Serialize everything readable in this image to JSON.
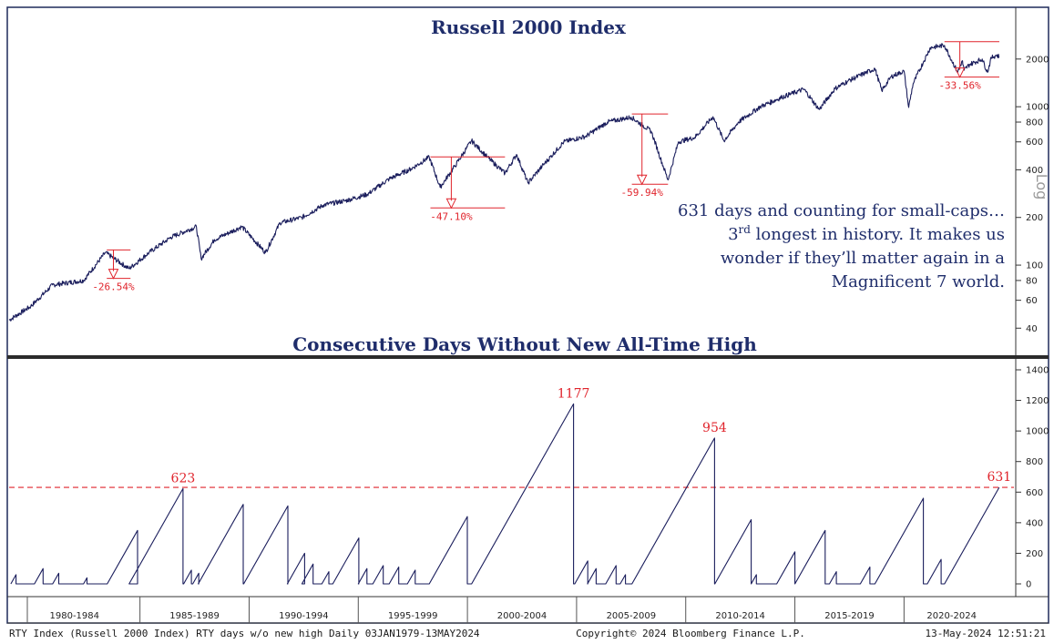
{
  "chart_data": [
    {
      "type": "line",
      "title": "Russell 2000 Index",
      "yscale": "log",
      "ylabel": "Log",
      "yticks": [
        40,
        60,
        80,
        100,
        200,
        400,
        600,
        800,
        1000,
        2000
      ],
      "ylim": [
        30,
        2600
      ],
      "xlim": [
        "1979-01-03",
        "2024-05-13"
      ],
      "series": [
        {
          "x": [
            "1979-01-03",
            "1980-01-01",
            "1981-01-01",
            "1982-06-01",
            "1983-06-01",
            "1984-07-01",
            "1985-06-01",
            "1986-06-01",
            "1987-08-01",
            "1987-10-20",
            "1988-06-01",
            "1989-09-01",
            "1990-10-01",
            "1991-06-01",
            "1992-06-01",
            "1993-06-01",
            "1994-06-01",
            "1995-06-01",
            "1996-06-01",
            "1997-06-01",
            "1998-04-01",
            "1998-10-01",
            "1999-06-01",
            "2000-03-09",
            "2000-12-01",
            "2001-09-20",
            "2002-04-01",
            "2002-10-09",
            "2003-06-01",
            "2004-06-01",
            "2005-06-01",
            "2006-06-01",
            "2007-07-01",
            "2008-06-01",
            "2009-03-09",
            "2009-09-01",
            "2010-06-01",
            "2011-04-01",
            "2011-10-01",
            "2012-06-01",
            "2013-06-01",
            "2014-06-01",
            "2015-06-01",
            "2016-02-11",
            "2016-11-01",
            "2017-06-01",
            "2018-08-31",
            "2018-12-24",
            "2019-06-01",
            "2020-01-01",
            "2020-03-18",
            "2020-06-01",
            "2020-12-01",
            "2021-03-15",
            "2021-11-08",
            "2022-06-16",
            "2022-09-01",
            "2022-10-01",
            "2023-01-01",
            "2023-07-31",
            "2023-10-27",
            "2023-12-31",
            "2024-03-31",
            "2024-05-13"
          ],
          "values": [
            45,
            55,
            75,
            80,
            120,
            95,
            120,
            150,
            175,
            110,
            145,
            175,
            120,
            185,
            200,
            240,
            255,
            280,
            350,
            405,
            480,
            310,
            420,
            610,
            480,
            380,
            500,
            330,
            420,
            600,
            650,
            800,
            860,
            700,
            345,
            600,
            640,
            865,
            610,
            800,
            1000,
            1150,
            1290,
            960,
            1300,
            1450,
            1740,
            1265,
            1550,
            1680,
            990,
            1400,
            1950,
            2360,
            2440,
            1650,
            1950,
            1700,
            1850,
            2000,
            1650,
            2040,
            2120,
            2060
          ]
        }
      ],
      "drawdowns": [
        {
          "label": "-26.54%",
          "pct": -26.54,
          "start": "1983-06-24",
          "end": "1984-07-25"
        },
        {
          "label": "-47.10%",
          "pct": -47.1,
          "start": "1998-04-21",
          "end": "2001-09-21"
        },
        {
          "label": "-59.94%",
          "pct": -59.94,
          "start": "2007-07-13",
          "end": "2009-03-09"
        },
        {
          "label": "-33.56%",
          "pct": -33.56,
          "start": "2021-11-08",
          "end": "2024-05-13"
        }
      ]
    },
    {
      "type": "line",
      "title": "Consecutive Days Without New All-Time High",
      "yticks": [
        0,
        200,
        400,
        600,
        800,
        1000,
        1200,
        1400
      ],
      "ylim": [
        -60,
        1400
      ],
      "xlim": [
        "1979-01-03",
        "2024-05-13"
      ],
      "reference_line": 631,
      "episodes": [
        {
          "start": "1979-02-01",
          "peak": 60
        },
        {
          "start": "1980-03-01",
          "peak": 100
        },
        {
          "start": "1981-01-01",
          "peak": 70
        },
        {
          "start": "1982-06-01",
          "peak": 40
        },
        {
          "start": "1983-07-01",
          "peak": 350
        },
        {
          "start": "1984-07-01",
          "peak": 623,
          "label": "623"
        },
        {
          "start": "1987-01-01",
          "peak": 90
        },
        {
          "start": "1987-06-01",
          "peak": 70
        },
        {
          "start": "1987-09-01",
          "peak": 520
        },
        {
          "start": "1989-10-01",
          "peak": 510
        },
        {
          "start": "1991-10-01",
          "peak": 200
        },
        {
          "start": "1992-06-01",
          "peak": 130
        },
        {
          "start": "1993-05-01",
          "peak": 80
        },
        {
          "start": "1993-11-01",
          "peak": 300
        },
        {
          "start": "1995-01-01",
          "peak": 100
        },
        {
          "start": "1995-09-01",
          "peak": 120
        },
        {
          "start": "1996-06-01",
          "peak": 110
        },
        {
          "start": "1997-04-01",
          "peak": 90
        },
        {
          "start": "1998-04-01",
          "peak": 440
        },
        {
          "start": "2000-03-10",
          "peak": 1177,
          "label": "1177"
        },
        {
          "start": "2004-12-01",
          "peak": 150
        },
        {
          "start": "2005-07-01",
          "peak": 100
        },
        {
          "start": "2006-05-01",
          "peak": 120
        },
        {
          "start": "2007-01-01",
          "peak": 60
        },
        {
          "start": "2007-07-14",
          "peak": 954,
          "label": "954"
        },
        {
          "start": "2011-05-01",
          "peak": 420
        },
        {
          "start": "2013-01-01",
          "peak": 60
        },
        {
          "start": "2014-03-01",
          "peak": 210
        },
        {
          "start": "2015-01-01",
          "peak": 350
        },
        {
          "start": "2016-08-01",
          "peak": 80
        },
        {
          "start": "2018-01-01",
          "peak": 110
        },
        {
          "start": "2018-08-31",
          "peak": 560
        },
        {
          "start": "2021-01-25",
          "peak": 160
        },
        {
          "start": "2021-11-09",
          "peak": 631,
          "label": "631"
        }
      ],
      "x_period_labels": [
        "1980-1984",
        "1985-1989",
        "1990-1994",
        "1995-1999",
        "2000-2004",
        "2005-2009",
        "2010-2014",
        "2015-2019",
        "2020-2024"
      ]
    }
  ],
  "annotation": {
    "line1": "631 days and counting for small-caps…",
    "line2_prefix": "3",
    "line2_super": "rd",
    "line2_rest": " longest in history. It makes us",
    "line3": "wonder if they’ll matter again in a",
    "line4": "Magnificent 7 world."
  },
  "footer": {
    "left": "RTY Index (Russell 2000 Index) RTY days w/o new high  Daily 03JAN1979-13MAY2024",
    "center": "Copyright© 2024 Bloomberg Finance L.P.",
    "right": "13-May-2024 12:51:21"
  }
}
